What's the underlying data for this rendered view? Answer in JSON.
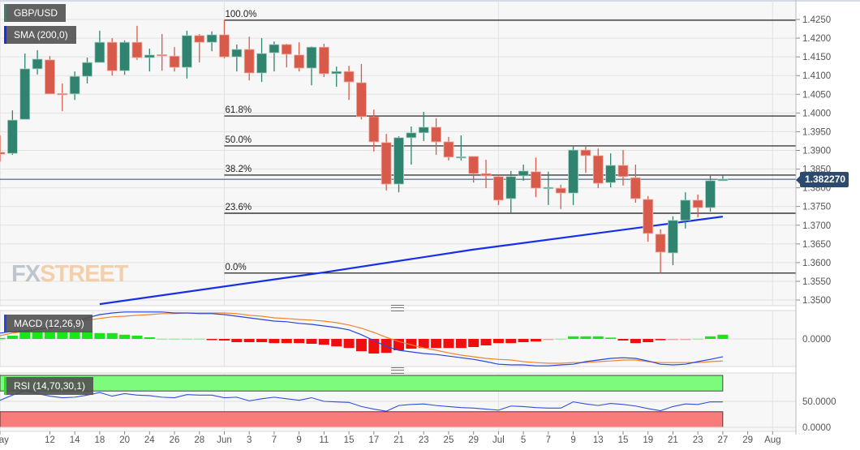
{
  "instrument_label": "GBP/USD",
  "indicator_labels": {
    "sma": "SMA (200,0)",
    "macd": "MACD (12,26,9)",
    "rsi": "RSI (14,70,30,1)"
  },
  "current_price": "1.382270",
  "logo": {
    "fx": "FX",
    "street": "STREET"
  },
  "colors": {
    "up": "#2f836f",
    "down": "#d85a4b",
    "sma": "#1530e8",
    "macd": "#2745e0",
    "signal": "#f0842a",
    "hist_up": "#19e619",
    "hist_down": "#f20d0d",
    "rsi": "#2f4fd8",
    "rsi_overbought": "#7cfb7c",
    "rsi_oversold": "#f97c7c",
    "price_tag": "#2c4a6e"
  },
  "chart_data": {
    "type": "candlestick",
    "price_axis": {
      "ylim": [
        1.348,
        1.4265
      ],
      "ticks": [
        "1.4250",
        "1.4200",
        "1.4150",
        "1.4100",
        "1.4050",
        "1.4000",
        "1.3950",
        "1.3900",
        "1.3850",
        "1.3800",
        "1.3750",
        "1.3700",
        "1.3650",
        "1.3600",
        "1.3550",
        "1.3500"
      ]
    },
    "x_ticks": [
      {
        "label": "May",
        "date": "May 6"
      },
      {
        "label": "12",
        "date": "May 12"
      },
      {
        "label": "14",
        "date": "May 14"
      },
      {
        "label": "18",
        "date": "May 18"
      },
      {
        "label": "20",
        "date": "May 20"
      },
      {
        "label": "24",
        "date": "May 24"
      },
      {
        "label": "26",
        "date": "May 26"
      },
      {
        "label": "28",
        "date": "May 28"
      },
      {
        "label": "Jun",
        "date": "Jun 1"
      },
      {
        "label": "3",
        "date": "Jun 3"
      },
      {
        "label": "7",
        "date": "Jun 7"
      },
      {
        "label": "9",
        "date": "Jun 9"
      },
      {
        "label": "11",
        "date": "Jun 11"
      },
      {
        "label": "15",
        "date": "Jun 15"
      },
      {
        "label": "17",
        "date": "Jun 17"
      },
      {
        "label": "21",
        "date": "Jun 21"
      },
      {
        "label": "23",
        "date": "Jun 23"
      },
      {
        "label": "25",
        "date": "Jun 25"
      },
      {
        "label": "29",
        "date": "Jun 29"
      },
      {
        "label": "Jul",
        "date": "Jul 1"
      },
      {
        "label": "5",
        "date": "Jul 5"
      },
      {
        "label": "7",
        "date": "Jul 7"
      },
      {
        "label": "9",
        "date": "Jul 9"
      },
      {
        "label": "13",
        "date": "Jul 13"
      },
      {
        "label": "15",
        "date": "Jul 15"
      },
      {
        "label": "19",
        "date": "Jul 19"
      },
      {
        "label": "21",
        "date": "Jul 21"
      },
      {
        "label": "23",
        "date": "Jul 23"
      },
      {
        "label": "27",
        "date": "Jul 27"
      },
      {
        "label": "29",
        "date": "Jul 29"
      },
      {
        "label": "Aug",
        "date": "Aug 2"
      }
    ],
    "candles_ohlc": [
      [
        "May 6",
        1.3895,
        1.394,
        1.387,
        1.389
      ],
      [
        "May 7",
        1.3892,
        1.4007,
        1.3888,
        1.3981
      ],
      [
        "May 10",
        1.3983,
        1.4159,
        1.3983,
        1.4118
      ],
      [
        "May 11",
        1.4118,
        1.4168,
        1.4103,
        1.4144
      ],
      [
        "May 12",
        1.4142,
        1.4152,
        1.4051,
        1.4051
      ],
      [
        "May 13",
        1.4052,
        1.4079,
        1.4005,
        1.405
      ],
      [
        "May 14",
        1.4051,
        1.4111,
        1.4035,
        1.4098
      ],
      [
        "May 17",
        1.4098,
        1.4148,
        1.4079,
        1.4135
      ],
      [
        "May 18",
        1.4135,
        1.422,
        1.4135,
        1.4189
      ],
      [
        "May 19",
        1.4189,
        1.42,
        1.41,
        1.4113
      ],
      [
        "May 20",
        1.4113,
        1.4194,
        1.4102,
        1.4189
      ],
      [
        "May 21",
        1.4189,
        1.4233,
        1.4142,
        1.4148
      ],
      [
        "May 24",
        1.4148,
        1.4172,
        1.4111,
        1.4155
      ],
      [
        "May 25",
        1.4156,
        1.4211,
        1.4113,
        1.4154
      ],
      [
        "May 26",
        1.4152,
        1.4176,
        1.4111,
        1.4122
      ],
      [
        "May 27",
        1.4122,
        1.422,
        1.4092,
        1.4207
      ],
      [
        "May 28",
        1.4207,
        1.4211,
        1.4135,
        1.4189
      ],
      [
        "May 31",
        1.4189,
        1.4218,
        1.4165,
        1.4209
      ],
      [
        "Jun 1",
        1.4209,
        1.4248,
        1.4146,
        1.415
      ],
      [
        "Jun 2",
        1.415,
        1.4183,
        1.4111,
        1.417
      ],
      [
        "Jun 3",
        1.417,
        1.4204,
        1.4087,
        1.4107
      ],
      [
        "Jun 4",
        1.4107,
        1.42,
        1.4083,
        1.4159
      ],
      [
        "Jun 7",
        1.4161,
        1.4191,
        1.4111,
        1.4183
      ],
      [
        "Jun 8",
        1.4183,
        1.4185,
        1.4122,
        1.4157
      ],
      [
        "Jun 9",
        1.4155,
        1.4189,
        1.4111,
        1.412
      ],
      [
        "Jun 10",
        1.412,
        1.4178,
        1.4074,
        1.4176
      ],
      [
        "Jun 11",
        1.4176,
        1.4185,
        1.4096,
        1.4105
      ],
      [
        "Jun 14",
        1.4105,
        1.4124,
        1.407,
        1.4111
      ],
      [
        "Jun 15",
        1.4111,
        1.4126,
        1.4035,
        1.4083
      ],
      [
        "Jun 16",
        1.4081,
        1.4131,
        1.3983,
        1.399
      ],
      [
        "Jun 17",
        1.399,
        1.4009,
        1.3897,
        1.3923
      ],
      [
        "Jun 18",
        1.3921,
        1.3944,
        1.3793,
        1.381
      ],
      [
        "Jun 21",
        1.381,
        1.3938,
        1.3788,
        1.3934
      ],
      [
        "Jun 22",
        1.3934,
        1.3964,
        1.3862,
        1.3947
      ],
      [
        "Jun 23",
        1.3947,
        1.4003,
        1.3925,
        1.3962
      ],
      [
        "Jun 24",
        1.3962,
        1.3986,
        1.3888,
        1.3923
      ],
      [
        "Jun 25",
        1.3923,
        1.3936,
        1.3873,
        1.3882
      ],
      [
        "Jun 28",
        1.388,
        1.394,
        1.3873,
        1.3883
      ],
      [
        "Jun 29",
        1.3884,
        1.3884,
        1.3814,
        1.3838
      ],
      [
        "Jun 30",
        1.3838,
        1.3875,
        1.3799,
        1.3832
      ],
      [
        "Jul 1",
        1.383,
        1.3836,
        1.3754,
        1.3767
      ],
      [
        "Jul 2",
        1.3771,
        1.3845,
        1.3732,
        1.383
      ],
      [
        "Jul 5",
        1.3832,
        1.3862,
        1.3819,
        1.3845
      ],
      [
        "Jul 6",
        1.3843,
        1.3881,
        1.3775,
        1.3799
      ],
      [
        "Jul 7",
        1.3799,
        1.3843,
        1.3754,
        1.3801
      ],
      [
        "Jul 8",
        1.3799,
        1.3808,
        1.3743,
        1.3786
      ],
      [
        "Jul 9",
        1.3786,
        1.391,
        1.3754,
        1.3901
      ],
      [
        "Jul 12",
        1.3901,
        1.391,
        1.384,
        1.3886
      ],
      [
        "Jul 13",
        1.3886,
        1.3905,
        1.3799,
        1.3812
      ],
      [
        "Jul 14",
        1.3814,
        1.3892,
        1.3801,
        1.386
      ],
      [
        "Jul 15",
        1.386,
        1.3901,
        1.3806,
        1.383
      ],
      [
        "Jul 16",
        1.3827,
        1.3862,
        1.376,
        1.3771
      ],
      [
        "Jul 19",
        1.3769,
        1.3778,
        1.3656,
        1.3678
      ],
      [
        "Jul 20",
        1.3676,
        1.3689,
        1.3572,
        1.3628
      ],
      [
        "Jul 21",
        1.3626,
        1.3724,
        1.3593,
        1.3713
      ],
      [
        "Jul 22",
        1.3713,
        1.3788,
        1.3691,
        1.3767
      ],
      [
        "Jul 23",
        1.3767,
        1.3782,
        1.3721,
        1.3747
      ],
      [
        "Jul 26",
        1.3747,
        1.3834,
        1.3736,
        1.3819
      ],
      [
        "Jul 27",
        1.3819,
        1.3834,
        1.3819,
        1.3823
      ]
    ],
    "sma_200": [
      [
        "May 18",
        1.3489
      ],
      [
        "Jun 11",
        1.3574
      ],
      [
        "Jun 29",
        1.3635
      ],
      [
        "Jul 27",
        1.3723
      ]
    ],
    "fibonacci": [
      {
        "label": "100.0%",
        "price": 1.4248
      },
      {
        "label": "61.8%",
        "price": 1.3992
      },
      {
        "label": "50.0%",
        "price": 1.3912
      },
      {
        "label": "38.2%",
        "price": 1.3834
      },
      {
        "label": "23.6%",
        "price": 1.3732
      },
      {
        "label": "0.0%",
        "price": 1.3572
      }
    ],
    "macd": {
      "zero_label": "0.0000",
      "ylim": [
        -0.0085,
        0.009
      ],
      "macd": [
        0.0018,
        0.0023,
        0.0025,
        0.003,
        0.0033,
        0.0043,
        0.0053,
        0.0065,
        0.0075,
        0.008,
        0.0083,
        0.0083,
        0.0083,
        0.0083,
        0.008,
        0.008,
        0.0078,
        0.0078,
        0.0075,
        0.007,
        0.0065,
        0.006,
        0.0055,
        0.0053,
        0.0048,
        0.0045,
        0.004,
        0.0035,
        0.0028,
        0.0013,
        -0.0005,
        -0.0023,
        -0.0035,
        -0.004,
        -0.0045,
        -0.0048,
        -0.0053,
        -0.0058,
        -0.0063,
        -0.007,
        -0.0078,
        -0.008,
        -0.008,
        -0.0083,
        -0.0083,
        -0.008,
        -0.0078,
        -0.007,
        -0.0065,
        -0.006,
        -0.0058,
        -0.006,
        -0.0068,
        -0.0078,
        -0.008,
        -0.0078,
        -0.007,
        -0.0063,
        -0.0055
      ],
      "signal": [
        0.001,
        0.0018,
        0.0023,
        0.003,
        0.0035,
        0.0043,
        0.005,
        0.0058,
        0.0063,
        0.0068,
        0.007,
        0.0073,
        0.0075,
        0.0078,
        0.0078,
        0.008,
        0.008,
        0.008,
        0.008,
        0.0078,
        0.0073,
        0.007,
        0.0065,
        0.0063,
        0.006,
        0.0058,
        0.0055,
        0.005,
        0.0043,
        0.0033,
        0.002,
        0.0005,
        -0.0008,
        -0.0018,
        -0.0028,
        -0.0035,
        -0.0043,
        -0.005,
        -0.0055,
        -0.006,
        -0.0063,
        -0.0065,
        -0.007,
        -0.0073,
        -0.0075,
        -0.0075,
        -0.0073,
        -0.0073,
        -0.007,
        -0.0068,
        -0.0065,
        -0.0065,
        -0.007,
        -0.0073,
        -0.0073,
        -0.0073,
        -0.0073,
        -0.007,
        -0.0068
      ],
      "histogram": [
        0.0003,
        0.001,
        0.0023,
        0.0023,
        0.002,
        0.002,
        0.002,
        0.0023,
        0.0018,
        0.0018,
        0.0013,
        0.001,
        0.0005,
        0.0001,
        0.0001,
        0.0001,
        0.0001,
        -0.0003,
        -0.0005,
        -0.001,
        -0.001,
        -0.001,
        -0.0013,
        -0.0013,
        -0.0013,
        -0.0015,
        -0.0018,
        -0.0023,
        -0.0028,
        -0.0038,
        -0.0045,
        -0.0043,
        -0.0035,
        -0.003,
        -0.0028,
        -0.0028,
        -0.0028,
        -0.0028,
        -0.0025,
        -0.002,
        -0.0013,
        -0.0013,
        -0.001,
        -0.0008,
        -0.0001,
        0.0001,
        0.0008,
        0.0008,
        0.0008,
        0.0004,
        -0.0005,
        -0.0013,
        -0.001,
        -0.0004,
        -0.0001,
        -0.0001,
        0.0001,
        0.0008,
        0.0013
      ]
    },
    "rsi": {
      "ticks": [
        "50.0000",
        "0.0000"
      ],
      "ylim": [
        0,
        100
      ],
      "overbought": 70,
      "oversold": 30,
      "values": [
        52,
        62,
        70,
        65,
        60,
        57,
        58,
        62,
        67,
        60,
        65,
        62,
        61,
        58,
        57,
        63,
        62,
        62,
        57,
        58,
        51,
        55,
        58,
        55,
        52,
        57,
        50,
        49,
        48,
        40,
        35,
        31,
        42,
        44,
        45,
        42,
        40,
        38,
        37,
        35,
        33,
        41,
        40,
        38,
        37,
        37,
        49,
        45,
        42,
        46,
        44,
        41,
        36,
        32,
        40,
        45,
        44,
        49,
        49
      ]
    }
  }
}
